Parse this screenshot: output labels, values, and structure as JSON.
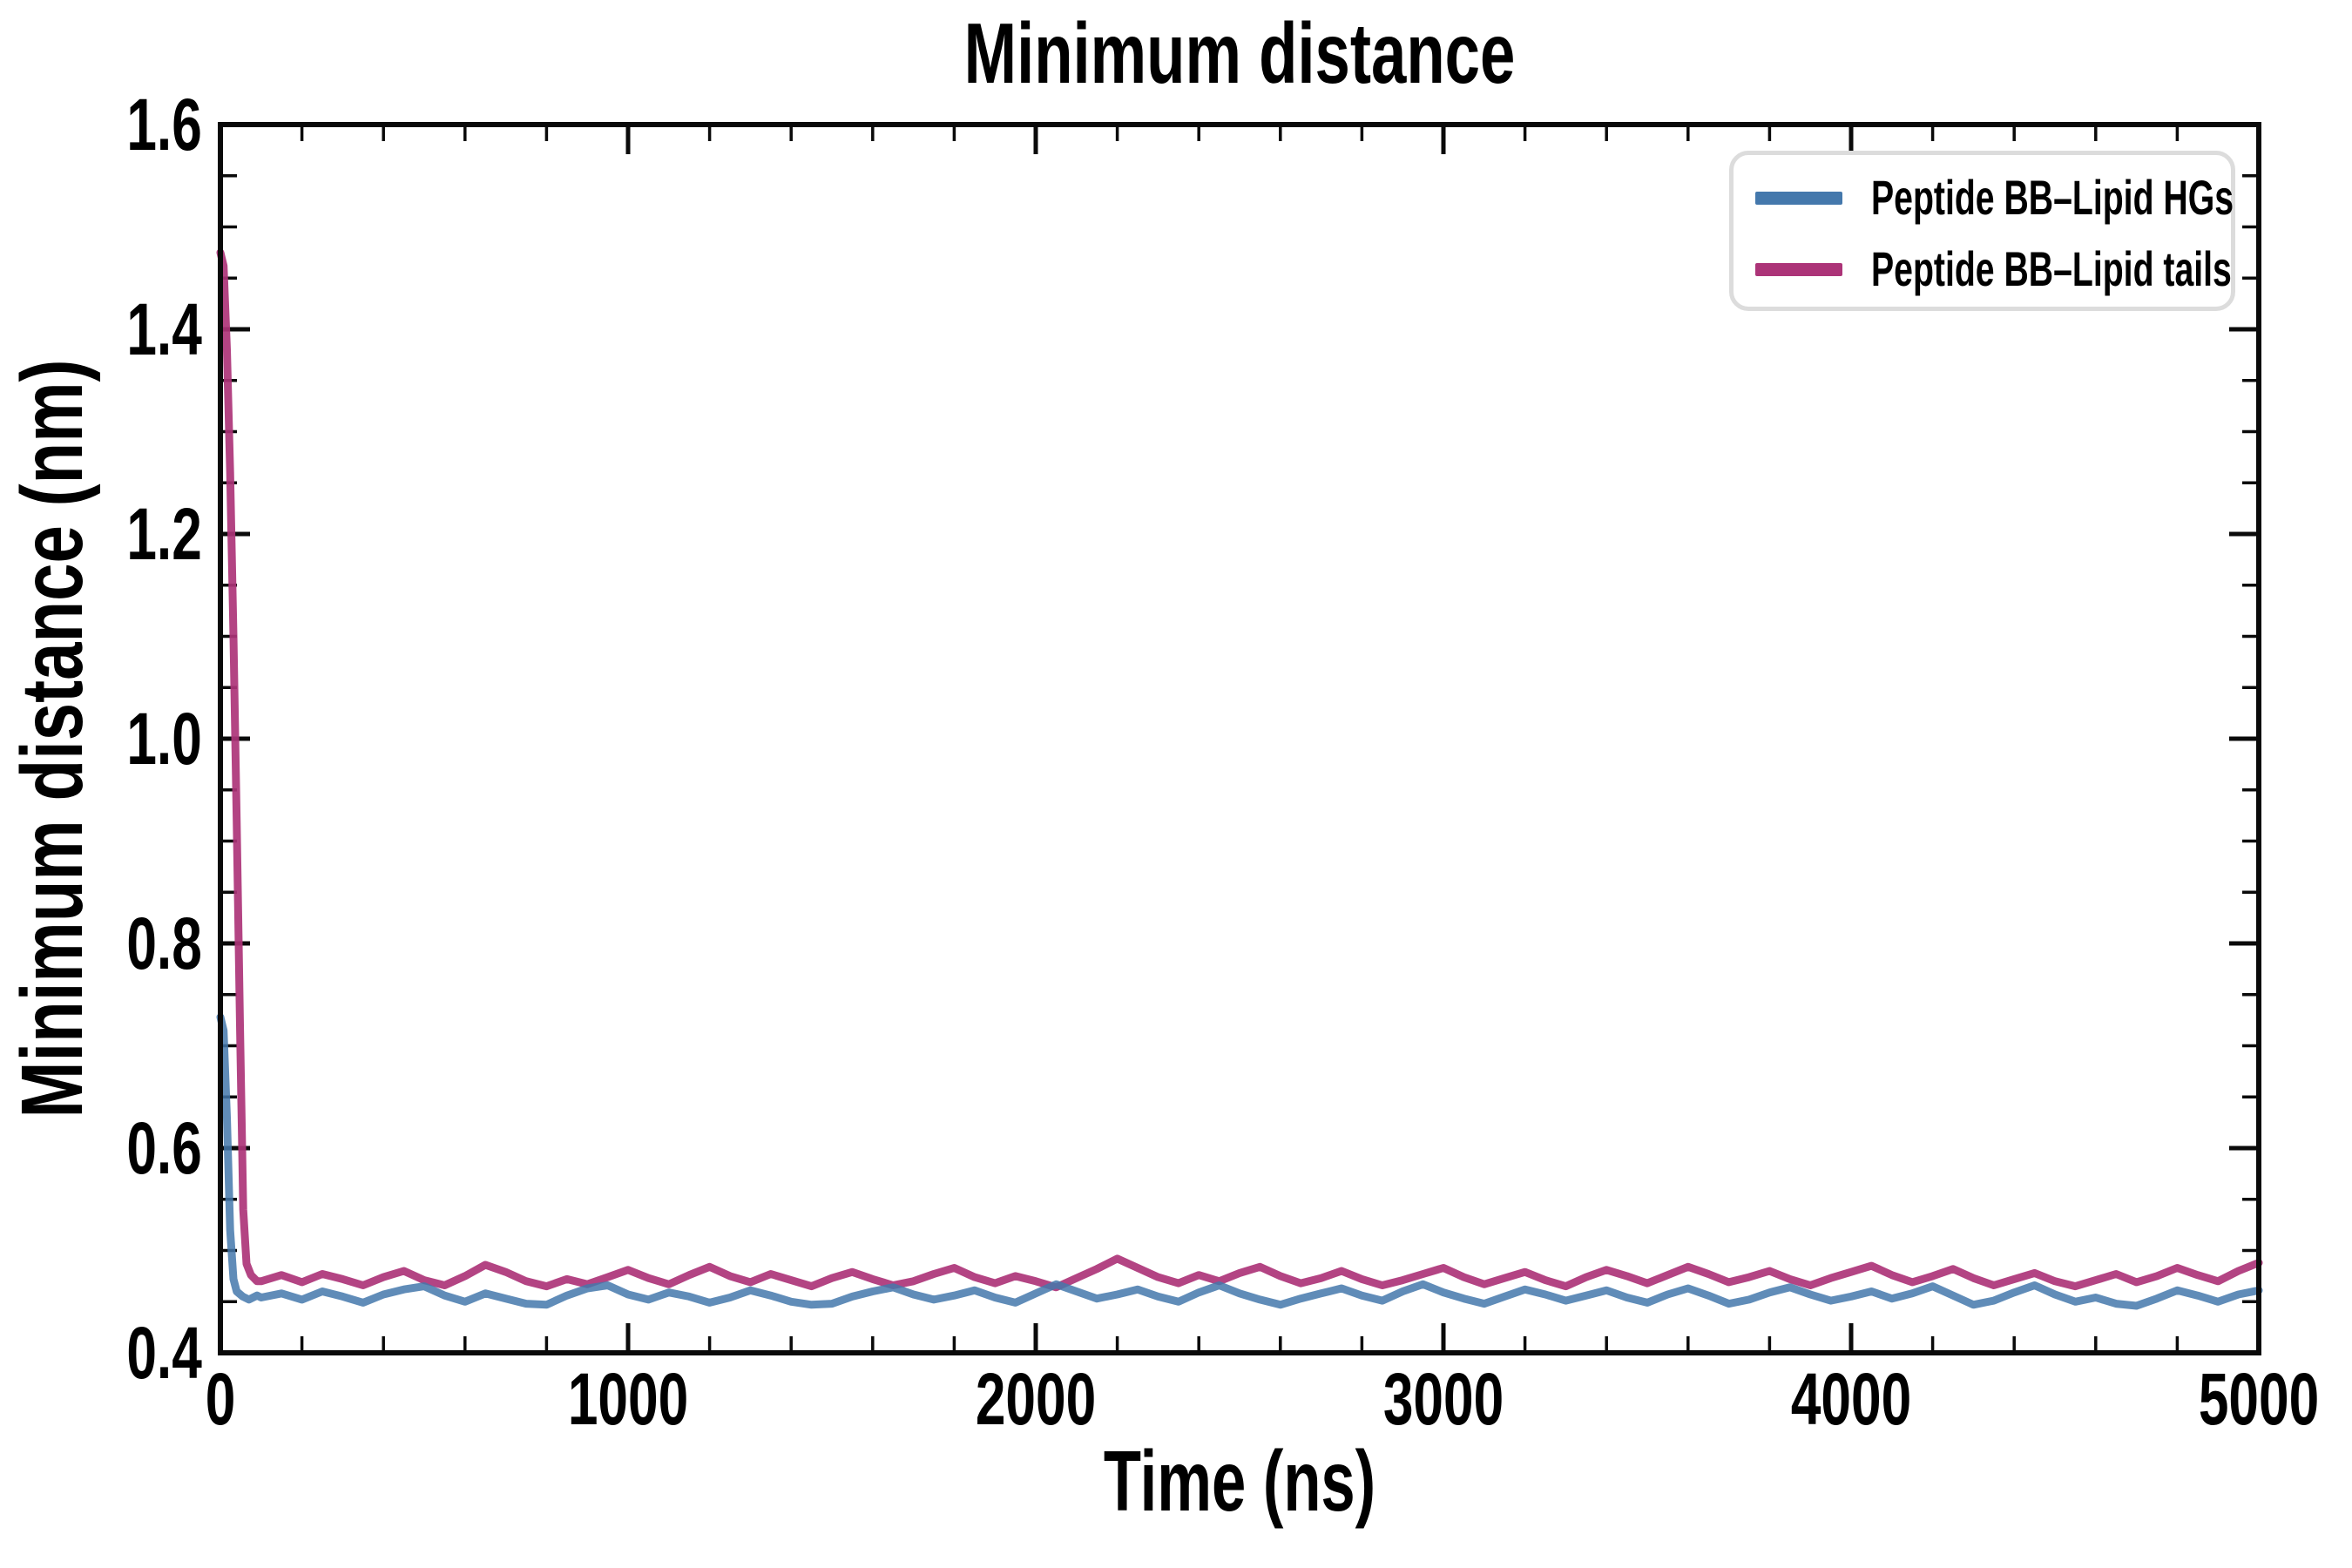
{
  "chart_data": {
    "type": "line",
    "title": "Minimum distance",
    "xlabel": "Time (ns)",
    "ylabel": "Minimum distance (nm)",
    "xlim": [
      0,
      5000
    ],
    "ylim": [
      0.4,
      1.6
    ],
    "grid": false,
    "background": "#ffffff",
    "spine_color": "#0a0a0a",
    "tick_style": {
      "direction": "in",
      "sides": "all",
      "major_len": 34,
      "minor_len": 19
    },
    "xticks": {
      "values": [
        0,
        1000,
        2000,
        3000,
        4000,
        5000
      ],
      "labels": [
        "0",
        "1000",
        "2000",
        "3000",
        "4000",
        "5000"
      ],
      "minor_step": 200
    },
    "yticks": {
      "values": [
        0.4,
        0.6,
        0.8,
        1.0,
        1.2,
        1.4,
        1.6
      ],
      "labels": [
        "0.4",
        "0.6",
        "0.8",
        "1.0",
        "1.2",
        "1.4",
        "1.6"
      ],
      "minor_step": 0.05
    },
    "legend": {
      "position": "upper right",
      "border_color": "#dcdcdc"
    },
    "series": [
      {
        "name": "Peptide BB–Lipid HGs",
        "color": "#4478AC",
        "line_opacity": 0.85,
        "line_width": 9,
        "head": [
          [
            0,
            0.728
          ],
          [
            8,
            0.715
          ],
          [
            16,
            0.63
          ],
          [
            24,
            0.52
          ],
          [
            32,
            0.472
          ],
          [
            40,
            0.46
          ],
          [
            55,
            0.455
          ],
          [
            70,
            0.452
          ],
          [
            90,
            0.456
          ]
        ],
        "tail": {
          "t0": 100,
          "dt": 50,
          "y_milli_nm": [
            454,
            458,
            452,
            460,
            455,
            449,
            457,
            462,
            465,
            456,
            450,
            458,
            453,
            448,
            447,
            456,
            463,
            466,
            457,
            452,
            459,
            455,
            449,
            454,
            461,
            456,
            450,
            447,
            448,
            455,
            460,
            464,
            457,
            452,
            456,
            461,
            454,
            449,
            458,
            467,
            460,
            453,
            457,
            462,
            455,
            450,
            459,
            466,
            458,
            452,
            447,
            453,
            458,
            463,
            456,
            451,
            460,
            467,
            459,
            453,
            448,
            455,
            462,
            457,
            451,
            456,
            461,
            454,
            449,
            457,
            463,
            456,
            448,
            452,
            459,
            464,
            457,
            451,
            455,
            460,
            453,
            458,
            465,
            456,
            447,
            451,
            459,
            466,
            457,
            450,
            454,
            448,
            446,
            453,
            461,
            456,
            450,
            457,
            461
          ]
        }
      },
      {
        "name": "Peptide BB–Lipid tails",
        "color": "#AC3478",
        "line_opacity": 0.92,
        "line_width": 9,
        "head": [
          [
            0,
            1.475
          ],
          [
            8,
            1.462
          ],
          [
            16,
            1.38
          ],
          [
            24,
            1.26
          ],
          [
            32,
            1.1
          ],
          [
            40,
            0.92
          ],
          [
            48,
            0.72
          ],
          [
            56,
            0.54
          ],
          [
            64,
            0.487
          ],
          [
            75,
            0.476
          ],
          [
            90,
            0.47
          ]
        ],
        "tail": {
          "t0": 100,
          "dt": 50,
          "y_milli_nm": [
            470,
            476,
            469,
            477,
            472,
            466,
            474,
            480,
            471,
            466,
            475,
            486,
            479,
            470,
            465,
            472,
            467,
            474,
            481,
            473,
            467,
            476,
            484,
            475,
            469,
            477,
            471,
            465,
            473,
            479,
            472,
            466,
            470,
            477,
            483,
            474,
            468,
            475,
            470,
            464,
            473,
            482,
            492,
            483,
            474,
            468,
            476,
            470,
            478,
            484,
            475,
            468,
            473,
            480,
            472,
            466,
            471,
            477,
            483,
            474,
            467,
            473,
            479,
            471,
            465,
            474,
            481,
            475,
            468,
            476,
            484,
            477,
            469,
            474,
            480,
            472,
            466,
            473,
            479,
            485,
            476,
            469,
            475,
            482,
            473,
            466,
            472,
            478,
            470,
            465,
            471,
            477,
            469,
            475,
            483,
            476,
            470,
            480,
            488
          ]
        }
      }
    ]
  }
}
